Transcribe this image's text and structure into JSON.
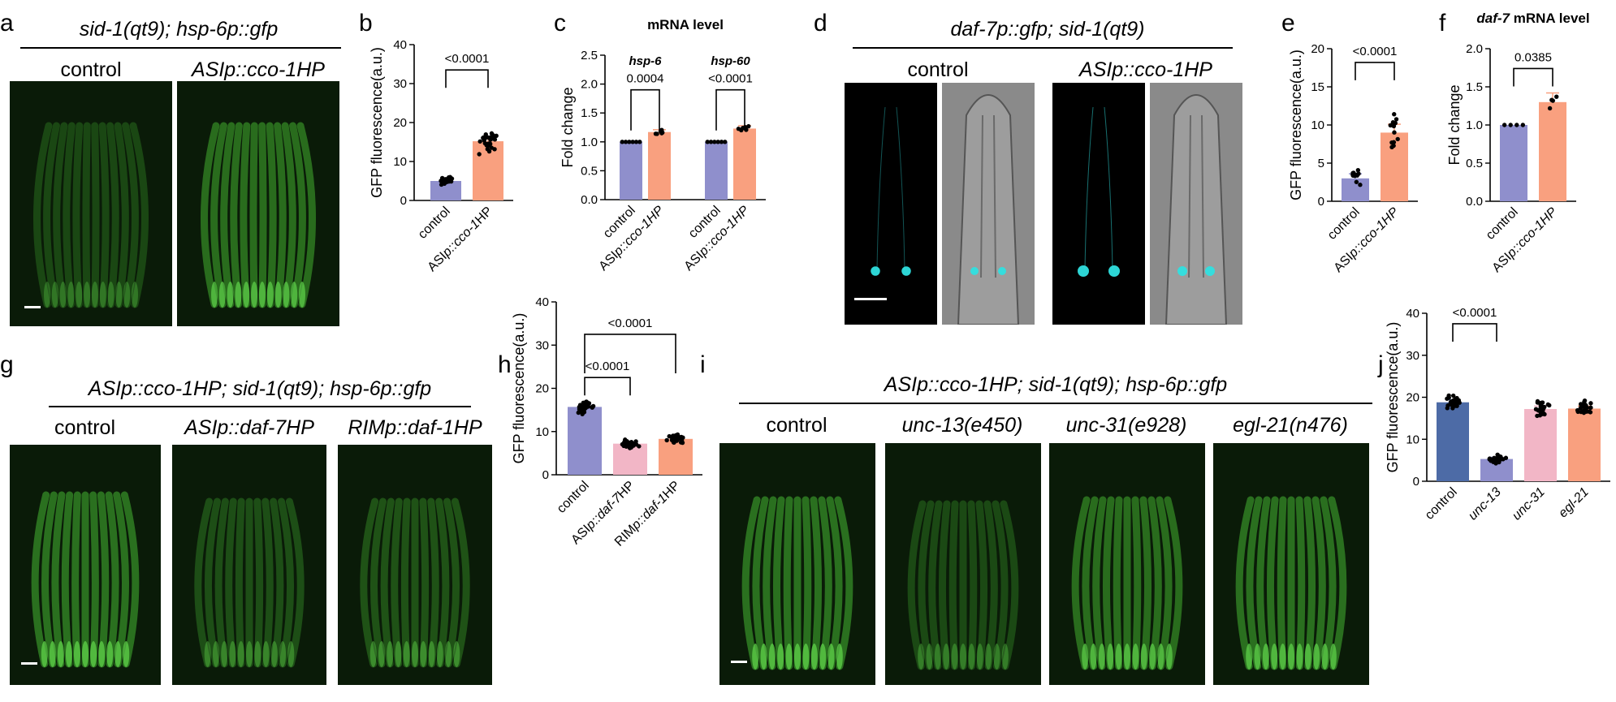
{
  "panel_labels": [
    "a",
    "b",
    "c",
    "d",
    "e",
    "f",
    "g",
    "h",
    "i",
    "j"
  ],
  "panel_a": {
    "title": "sid-1(qt9); hsp-6p::gfp",
    "conditions": [
      {
        "text": "control",
        "italic": false
      },
      {
        "text": "ASIp::cco-1HP",
        "italic": true
      }
    ]
  },
  "panel_d": {
    "title": "daf-7p::gfp; sid-1(qt9)",
    "conditions": [
      {
        "text": "control",
        "italic": false
      },
      {
        "text": "ASIp::cco-1HP",
        "italic": true
      }
    ]
  },
  "panel_g": {
    "title": "ASIp::cco-1HP; sid-1(qt9); hsp-6p::gfp",
    "conditions": [
      {
        "text": "control",
        "italic": false
      },
      {
        "text": "ASIp::daf-7HP",
        "italic": true
      },
      {
        "text": "RIMp::daf-1HP",
        "italic": true
      }
    ]
  },
  "panel_i": {
    "title": "ASIp::cco-1HP; sid-1(qt9); hsp-6p::gfp",
    "conditions": [
      {
        "text": "control",
        "italic": false
      },
      {
        "text": "unc-13(e450)",
        "italic": true
      },
      {
        "text": "unc-31(e928)",
        "italic": true
      },
      {
        "text": "egl-21(n476)",
        "italic": true
      }
    ]
  },
  "colors": {
    "control_purple": "#8f8fcc",
    "salmon": "#f9a07f",
    "pink": "#f2b6c6",
    "navy": "#4d6ba6",
    "gfp_green": "#3fa52d",
    "cyan": "#2fe0e0"
  },
  "chart_data": [
    {
      "panel": "b",
      "type": "bar",
      "categories": [
        "control",
        "ASIp::cco-1HP"
      ],
      "values": [
        5.0,
        15.2
      ],
      "errors": [
        0.3,
        0.8
      ],
      "ylabel": "GFP fluorescence(a.u.)",
      "ylim": [
        0,
        40
      ],
      "yticks": [
        0,
        10,
        20,
        30,
        40
      ],
      "significance": [
        {
          "from": 0,
          "to": 1,
          "label": "<0.0001"
        }
      ]
    },
    {
      "panel": "c",
      "type": "bar",
      "title": "mRNA level",
      "groups": [
        "hsp-6",
        "hsp-60"
      ],
      "categories": [
        "control",
        "ASIp::cco-1HP",
        "control",
        "ASIp::cco-1HP"
      ],
      "values": [
        1.0,
        1.17,
        1.0,
        1.23
      ],
      "errors": [
        0,
        0.04,
        0,
        0.05
      ],
      "ylabel": "Fold change",
      "ylim": [
        0,
        2.5
      ],
      "yticks": [
        0.0,
        0.5,
        1.0,
        1.5,
        2.0,
        2.5
      ],
      "significance": [
        {
          "from": 0,
          "to": 1,
          "label": "0.0004"
        },
        {
          "from": 2,
          "to": 3,
          "label": "<0.0001"
        }
      ]
    },
    {
      "panel": "e",
      "type": "bar",
      "categories": [
        "control",
        "ASIp::cco-1HP"
      ],
      "values": [
        3.0,
        9.0
      ],
      "errors": [
        0.6,
        1.1
      ],
      "ylabel": "GFP fluorescence(a.u.)",
      "ylim": [
        0,
        20
      ],
      "yticks": [
        0,
        5,
        10,
        15,
        20
      ],
      "significance": [
        {
          "from": 0,
          "to": 1,
          "label": "<0.0001"
        }
      ]
    },
    {
      "panel": "f",
      "type": "bar",
      "title": "daf-7 mRNA level",
      "categories": [
        "control",
        "ASIp::cco-1HP"
      ],
      "values": [
        1.0,
        1.3
      ],
      "errors": [
        0,
        0.12
      ],
      "ylabel": "Fold change",
      "ylim": [
        0,
        2.0
      ],
      "yticks": [
        0.0,
        0.5,
        1.0,
        1.5,
        2.0
      ],
      "significance": [
        {
          "from": 0,
          "to": 1,
          "label": "0.0385"
        }
      ]
    },
    {
      "panel": "h",
      "type": "bar",
      "categories": [
        "control",
        "ASIp::daf-7HP",
        "RIMp::daf-1HP"
      ],
      "values": [
        15.7,
        7.2,
        8.3
      ],
      "errors": [
        0.6,
        0.3,
        0.4
      ],
      "ylabel": "GFP fluorescence(a.u.)",
      "ylim": [
        0,
        40
      ],
      "yticks": [
        0,
        10,
        20,
        30,
        40
      ],
      "significance": [
        {
          "from": 0,
          "to": 1,
          "label": "<0.0001"
        },
        {
          "from": 0,
          "to": 2,
          "label": "<0.0001"
        }
      ]
    },
    {
      "panel": "j",
      "type": "bar",
      "categories": [
        "control",
        "unc-13",
        "unc-31",
        "egl-21"
      ],
      "values": [
        18.8,
        5.3,
        17.2,
        17.3
      ],
      "errors": [
        0.6,
        0.4,
        0.7,
        0.6
      ],
      "ylabel": "GFP fluorescence(a.u.)",
      "ylim": [
        0,
        40
      ],
      "yticks": [
        0,
        10,
        20,
        30,
        40
      ],
      "significance": [
        {
          "from": 0,
          "to": 1,
          "label": "<0.0001"
        }
      ]
    }
  ]
}
